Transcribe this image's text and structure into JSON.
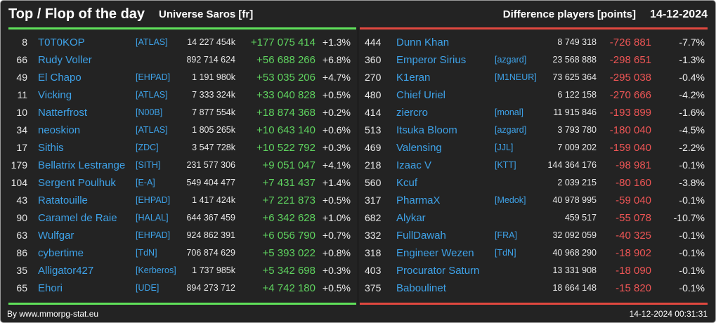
{
  "header": {
    "title": "Top / Flop of the day",
    "universe": "Universe Saros [fr]",
    "metric": "Difference players [points]",
    "date": "14-12-2024"
  },
  "colors": {
    "background": "#232323",
    "name": "#3ea2e8",
    "gain": "#5fd35f",
    "loss": "#ee5555",
    "top_line": "#5fe05a",
    "flop_line": "#e0483f"
  },
  "top": [
    {
      "rank": "8",
      "name": "T0T0KOP",
      "alliance": "[ATLAS]",
      "points": "14 227 454k",
      "diff": "+177 075 414",
      "pct": "+1.3%"
    },
    {
      "rank": "66",
      "name": "Rudy Voller",
      "alliance": "",
      "points": "892 714 624",
      "diff": "+56 688 266",
      "pct": "+6.8%"
    },
    {
      "rank": "49",
      "name": "El Chapo",
      "alliance": "[EHPAD]",
      "points": "1 191 980k",
      "diff": "+53 035 206",
      "pct": "+4.7%"
    },
    {
      "rank": "11",
      "name": "Vicking",
      "alliance": "[ATLAS]",
      "points": "7 333 324k",
      "diff": "+33 040 828",
      "pct": "+0.5%"
    },
    {
      "rank": "10",
      "name": "Natterfrost",
      "alliance": "[N00B]",
      "points": "7 877 554k",
      "diff": "+18 874 368",
      "pct": "+0.2%"
    },
    {
      "rank": "34",
      "name": "neoskion",
      "alliance": "[ATLAS]",
      "points": "1 805 265k",
      "diff": "+10 643 140",
      "pct": "+0.6%"
    },
    {
      "rank": "17",
      "name": "Sithis",
      "alliance": "[ZDC]",
      "points": "3 547 728k",
      "diff": "+10 522 792",
      "pct": "+0.3%"
    },
    {
      "rank": "179",
      "name": "Bellatrix Lestrange",
      "alliance": "[SITH]",
      "points": "231 577 306",
      "diff": "+9 051 047",
      "pct": "+4.1%"
    },
    {
      "rank": "104",
      "name": "Sergent Poulhuk",
      "alliance": "[E-A]",
      "points": "549 404 477",
      "diff": "+7 431 437",
      "pct": "+1.4%"
    },
    {
      "rank": "43",
      "name": "Ratatouille",
      "alliance": "[EHPAD]",
      "points": "1 417 424k",
      "diff": "+7 221 873",
      "pct": "+0.5%"
    },
    {
      "rank": "90",
      "name": "Caramel de Raie",
      "alliance": "[HALAL]",
      "points": "644 367 459",
      "diff": "+6 342 628",
      "pct": "+1.0%"
    },
    {
      "rank": "63",
      "name": "Wulfgar",
      "alliance": "[EHPAD]",
      "points": "924 862 391",
      "diff": "+6 056 790",
      "pct": "+0.7%"
    },
    {
      "rank": "86",
      "name": "cybertime",
      "alliance": "[TdN]",
      "points": "706 874 629",
      "diff": "+5 393 022",
      "pct": "+0.8%"
    },
    {
      "rank": "35",
      "name": "Alligator427",
      "alliance": "[Kerberos]",
      "points": "1 737 985k",
      "diff": "+5 342 698",
      "pct": "+0.3%"
    },
    {
      "rank": "65",
      "name": "Ehori",
      "alliance": "[UDE]",
      "points": "894 273 712",
      "diff": "+4 742 180",
      "pct": "+0.5%"
    }
  ],
  "flop": [
    {
      "rank": "444",
      "name": "Dunn Khan",
      "alliance": "",
      "points": "8 749 318",
      "diff": "-726 881",
      "pct": "-7.7%"
    },
    {
      "rank": "360",
      "name": "Emperor Sirius",
      "alliance": "[azgard]",
      "points": "23 568 888",
      "diff": "-298 651",
      "pct": "-1.3%"
    },
    {
      "rank": "270",
      "name": "K1eran",
      "alliance": "[M1NEUR]",
      "points": "73 625 364",
      "diff": "-295 038",
      "pct": "-0.4%"
    },
    {
      "rank": "480",
      "name": "Chief Uriel",
      "alliance": "",
      "points": "6 122 158",
      "diff": "-270 666",
      "pct": "-4.2%"
    },
    {
      "rank": "414",
      "name": "ziercro",
      "alliance": "[monal]",
      "points": "11 915 846",
      "diff": "-193 899",
      "pct": "-1.6%"
    },
    {
      "rank": "513",
      "name": "Itsuka Bloom",
      "alliance": "[azgard]",
      "points": "3 793 780",
      "diff": "-180 040",
      "pct": "-4.5%"
    },
    {
      "rank": "469",
      "name": "Valensing",
      "alliance": "[JJL]",
      "points": "7 009 202",
      "diff": "-159 040",
      "pct": "-2.2%"
    },
    {
      "rank": "218",
      "name": "Izaac V",
      "alliance": "[KTT]",
      "points": "144 364 176",
      "diff": "-98 981",
      "pct": "-0.1%"
    },
    {
      "rank": "560",
      "name": "Kcuf",
      "alliance": "",
      "points": "2 039 215",
      "diff": "-80 160",
      "pct": "-3.8%"
    },
    {
      "rank": "317",
      "name": "PharmaX",
      "alliance": "[Medok]",
      "points": "40 978 995",
      "diff": "-59 040",
      "pct": "-0.1%"
    },
    {
      "rank": "682",
      "name": "Alykar",
      "alliance": "",
      "points": "459 517",
      "diff": "-55 078",
      "pct": "-10.7%"
    },
    {
      "rank": "332",
      "name": "FullDawah",
      "alliance": "[FRA]",
      "points": "32 092 059",
      "diff": "-40 325",
      "pct": "-0.1%"
    },
    {
      "rank": "318",
      "name": "Engineer Wezen",
      "alliance": "[TdN]",
      "points": "40 968 290",
      "diff": "-18 902",
      "pct": "-0.1%"
    },
    {
      "rank": "403",
      "name": "Procurator Saturn",
      "alliance": "",
      "points": "13 331 908",
      "diff": "-18 090",
      "pct": "-0.1%"
    },
    {
      "rank": "375",
      "name": "Baboulinet",
      "alliance": "",
      "points": "18 664 148",
      "diff": "-15 820",
      "pct": "-0.1%"
    }
  ],
  "footer": {
    "credit": "By www.mmorpg-stat.eu",
    "timestamp": "14-12-2024 00:31:31"
  }
}
